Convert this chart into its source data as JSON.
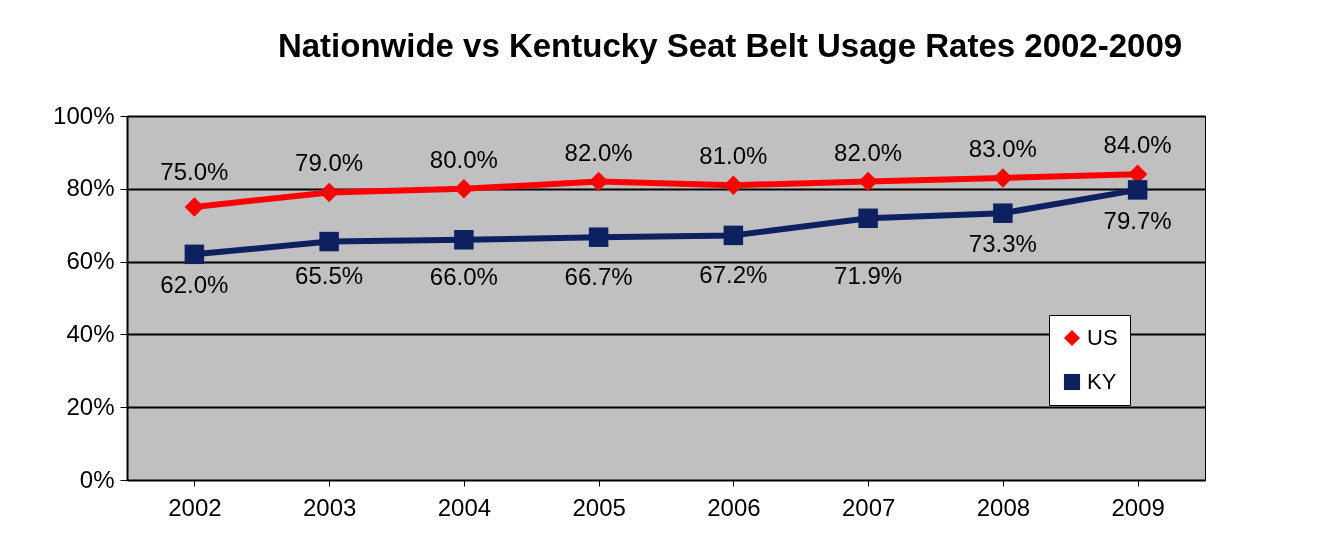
{
  "chart_data": {
    "type": "line",
    "title": "Nationwide  vs Kentucky Seat Belt Usage Rates  2002-2009",
    "categories": [
      "2002",
      "2003",
      "2004",
      "2005",
      "2006",
      "2007",
      "2008",
      "2009"
    ],
    "series": [
      {
        "name": "US",
        "color": "#ff0000",
        "marker": "diamond",
        "values": [
          75,
          79,
          80,
          82,
          81,
          82,
          83,
          84
        ],
        "value_labels": [
          "75.0%",
          "79.0%",
          "80.0%",
          "82.0%",
          "81.0%",
          "82.0%",
          "83.0%",
          "84.0%"
        ]
      },
      {
        "name": "KY",
        "color": "#0d2160",
        "marker": "square",
        "values": [
          62,
          65.5,
          66,
          66.7,
          67.2,
          71.9,
          73.3,
          79.7
        ],
        "value_labels": [
          "62.0%",
          "65.5%",
          "66.0%",
          "66.7%",
          "67.2%",
          "71.9%",
          "73.3%",
          "79.7%"
        ]
      }
    ],
    "ylim": [
      0,
      100
    ],
    "yticks": [
      {
        "value": 0,
        "label": "0%"
      },
      {
        "value": 20,
        "label": "20%"
      },
      {
        "value": 40,
        "label": "40%"
      },
      {
        "value": 60,
        "label": "60%"
      },
      {
        "value": 80,
        "label": "80%"
      },
      {
        "value": 100,
        "label": "100%"
      }
    ],
    "grid": "y",
    "legend": "bottom right"
  }
}
